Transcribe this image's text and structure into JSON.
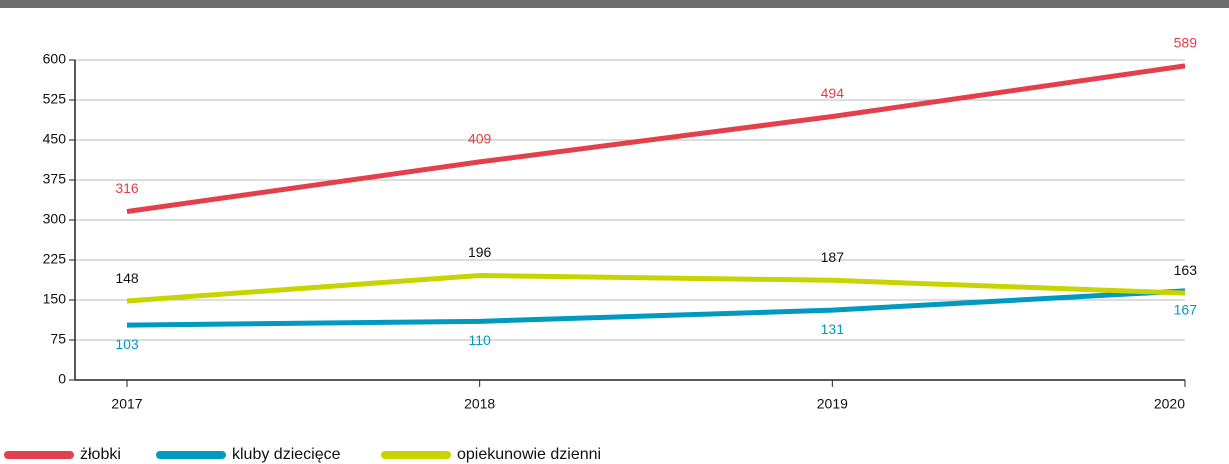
{
  "chart_data": {
    "type": "line",
    "categories": [
      "2017",
      "2018",
      "2019",
      "2020"
    ],
    "series": [
      {
        "name": "żłobki",
        "color": "#e2404b",
        "values": [
          316,
          409,
          494,
          589
        ]
      },
      {
        "name": "kluby dziecięce",
        "color": "#0099c0",
        "values": [
          103,
          110,
          131,
          167
        ]
      },
      {
        "name": "opiekunowie dzienni",
        "color": "#c8d400",
        "values": [
          148,
          196,
          187,
          163
        ]
      }
    ],
    "ylim": [
      0,
      600
    ],
    "yticks": [
      0,
      75,
      150,
      225,
      300,
      375,
      450,
      525,
      600
    ],
    "grid": true
  }
}
